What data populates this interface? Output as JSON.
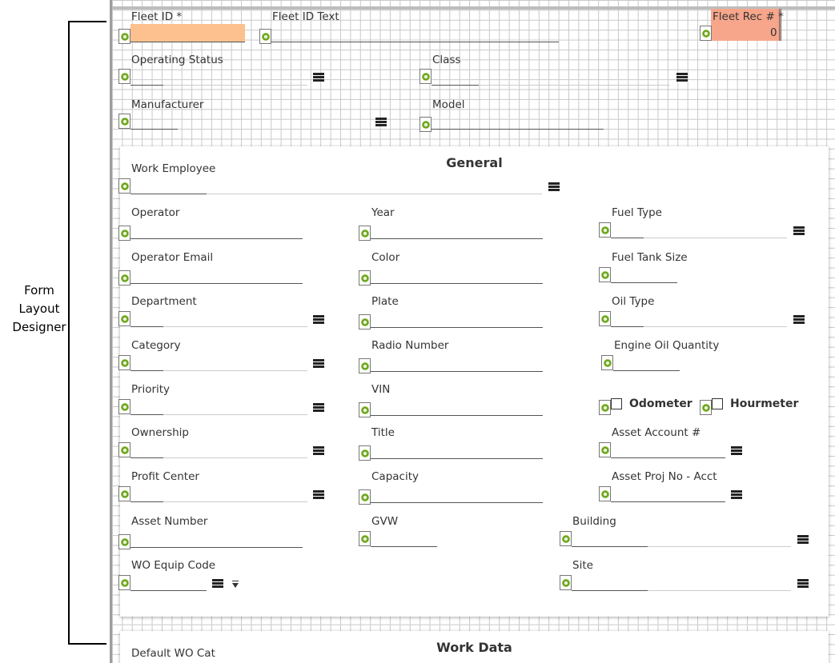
{
  "side_label": [
    "Form",
    "Layout",
    "Designer"
  ],
  "header_fields": {
    "fleet_id": "Fleet ID *",
    "fleet_id_text": "Fleet ID Text",
    "fleet_rec": "Fleet Rec # *",
    "fleet_rec_value": "0",
    "operating_status": "Operating Status",
    "class": "Class",
    "manufacturer": "Manufacturer",
    "model": "Model"
  },
  "general": {
    "title": "General",
    "work_employee": "Work Employee",
    "operator": "Operator",
    "year": "Year",
    "fuel_type": "Fuel Type",
    "operator_email": "Operator Email",
    "color": "Color",
    "fuel_tank_size": "Fuel Tank Size",
    "department": "Department",
    "plate": "Plate",
    "oil_type": "Oil Type",
    "category": "Category",
    "radio_number": "Radio Number",
    "engine_oil_quantity": "Engine Oil Quantity",
    "priority": "Priority",
    "vin": "VIN",
    "odometer": "Odometer",
    "hourmeter": "Hourmeter",
    "ownership": "Ownership",
    "title_field": "Title",
    "asset_account": "Asset Account #",
    "profit_center": "Profit Center",
    "capacity": "Capacity",
    "asset_proj": "Asset Proj No - Acct",
    "asset_number": "Asset Number",
    "gvw": "GVW",
    "building": "Building",
    "wo_equip_code": "WO Equip Code",
    "site": "Site"
  },
  "work_data": {
    "title": "Work Data",
    "default_wo_cat": "Default WO Cat"
  }
}
